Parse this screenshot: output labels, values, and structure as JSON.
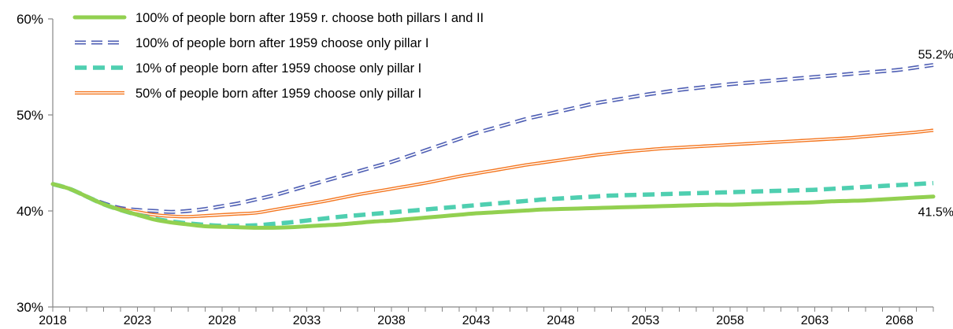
{
  "chart_data": {
    "type": "line",
    "title": "",
    "xlabel": "",
    "ylabel": "",
    "ylim": [
      30,
      60
    ],
    "y_ticks": [
      "30%",
      "40%",
      "50%",
      "60%"
    ],
    "y_tick_values": [
      30,
      40,
      50,
      60
    ],
    "x_range": [
      2018,
      2070
    ],
    "x_ticks": [
      "2018",
      "2023",
      "2028",
      "2033",
      "2038",
      "2043",
      "2048",
      "2053",
      "2058",
      "2063",
      "2068"
    ],
    "x_tick_values": [
      2018,
      2023,
      2028,
      2033,
      2038,
      2043,
      2048,
      2053,
      2058,
      2063,
      2068
    ],
    "grid": false,
    "legend_position": "top-left",
    "x": [
      2018,
      2019,
      2020,
      2021,
      2022,
      2023,
      2024,
      2025,
      2026,
      2027,
      2028,
      2029,
      2030,
      2031,
      2032,
      2033,
      2034,
      2035,
      2036,
      2037,
      2038,
      2039,
      2040,
      2041,
      2042,
      2043,
      2044,
      2045,
      2046,
      2047,
      2048,
      2049,
      2050,
      2051,
      2052,
      2053,
      2054,
      2055,
      2056,
      2057,
      2058,
      2059,
      2060,
      2061,
      2062,
      2063,
      2064,
      2065,
      2066,
      2067,
      2068,
      2069,
      2070
    ],
    "series": [
      {
        "name": "100% of people born after 1959 r. choose both pillars I and II",
        "color": "#92d050",
        "style": "solid-thick",
        "values": [
          42.8,
          42.3,
          41.5,
          40.7,
          40.1,
          39.6,
          39.1,
          38.8,
          38.6,
          38.4,
          38.35,
          38.3,
          38.25,
          38.25,
          38.3,
          38.4,
          38.5,
          38.6,
          38.75,
          38.9,
          39.0,
          39.15,
          39.3,
          39.45,
          39.6,
          39.75,
          39.85,
          39.95,
          40.05,
          40.15,
          40.2,
          40.25,
          40.3,
          40.35,
          40.4,
          40.45,
          40.5,
          40.55,
          40.6,
          40.65,
          40.65,
          40.7,
          40.75,
          40.8,
          40.85,
          40.9,
          41.0,
          41.05,
          41.1,
          41.2,
          41.3,
          41.4,
          41.5
        ],
        "end_label": "41.5%"
      },
      {
        "name": "100% of people born after 1959 choose only pillar I",
        "color": "#4f5fb4",
        "style": "dashed-double",
        "values": [
          42.8,
          42.3,
          41.5,
          40.8,
          40.3,
          40.1,
          40.0,
          39.9,
          40.0,
          40.2,
          40.5,
          40.8,
          41.2,
          41.6,
          42.1,
          42.6,
          43.1,
          43.6,
          44.1,
          44.6,
          45.1,
          45.7,
          46.3,
          46.9,
          47.5,
          48.1,
          48.6,
          49.1,
          49.6,
          50.0,
          50.4,
          50.8,
          51.2,
          51.5,
          51.8,
          52.1,
          52.35,
          52.6,
          52.8,
          53.0,
          53.2,
          53.35,
          53.5,
          53.65,
          53.8,
          53.95,
          54.1,
          54.25,
          54.4,
          54.55,
          54.7,
          54.95,
          55.2
        ],
        "end_label": "55.2%"
      },
      {
        "name": "10% of people born after 1959 choose only pillar I",
        "color": "#4fcfb0",
        "style": "dashed-thick",
        "values": [
          42.8,
          42.3,
          41.5,
          40.7,
          40.1,
          39.6,
          39.2,
          38.9,
          38.7,
          38.55,
          38.45,
          38.45,
          38.5,
          38.65,
          38.8,
          39.0,
          39.2,
          39.4,
          39.55,
          39.7,
          39.85,
          40.0,
          40.15,
          40.3,
          40.45,
          40.6,
          40.75,
          40.9,
          41.05,
          41.2,
          41.3,
          41.4,
          41.5,
          41.6,
          41.65,
          41.7,
          41.75,
          41.8,
          41.85,
          41.9,
          41.95,
          42.0,
          42.05,
          42.1,
          42.15,
          42.2,
          42.3,
          42.4,
          42.5,
          42.6,
          42.7,
          42.8,
          42.9
        ]
      },
      {
        "name": "50% of people born after 1959 choose only pillar I",
        "color": "#f4761f",
        "style": "solid-double",
        "values": [
          42.8,
          42.3,
          41.5,
          40.7,
          40.2,
          39.9,
          39.6,
          39.45,
          39.4,
          39.5,
          39.6,
          39.7,
          39.8,
          40.1,
          40.4,
          40.7,
          41.0,
          41.35,
          41.7,
          42.0,
          42.3,
          42.6,
          42.9,
          43.25,
          43.6,
          43.9,
          44.2,
          44.5,
          44.8,
          45.05,
          45.3,
          45.55,
          45.8,
          46.0,
          46.2,
          46.35,
          46.5,
          46.6,
          46.7,
          46.8,
          46.9,
          47.0,
          47.1,
          47.2,
          47.3,
          47.4,
          47.5,
          47.6,
          47.75,
          47.9,
          48.05,
          48.2,
          48.4
        ]
      }
    ]
  }
}
